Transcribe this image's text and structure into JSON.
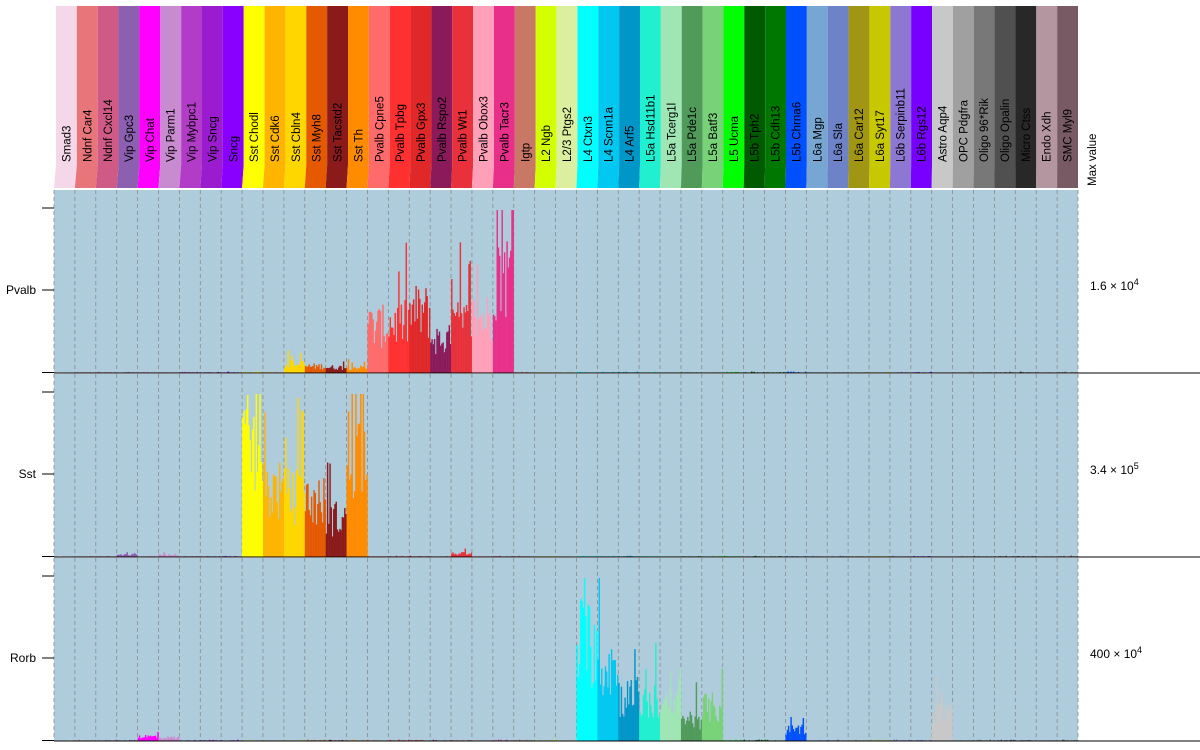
{
  "chart_data": {
    "type": "bar",
    "title": "",
    "max_value_header": "Max value",
    "clusters": [
      {
        "name": "Smad3",
        "color": "#F4D7E8"
      },
      {
        "name": "Ndnf Car4",
        "color": "#E8757A"
      },
      {
        "name": "Ndnf Cxcl14",
        "color": "#CF5A86"
      },
      {
        "name": "Vip Gpc3",
        "color": "#8C5FB0"
      },
      {
        "name": "Vip Chat",
        "color": "#FF00FF"
      },
      {
        "name": "Vip Parm1",
        "color": "#C98BD0"
      },
      {
        "name": "Vip Mybpc1",
        "color": "#B23CC8"
      },
      {
        "name": "Vip Sncg",
        "color": "#9B1CCF"
      },
      {
        "name": "Sncg",
        "color": "#8A00FF"
      },
      {
        "name": "Sst Chodl",
        "color": "#FFFF00"
      },
      {
        "name": "Sst Cdk6",
        "color": "#FFB400"
      },
      {
        "name": "Sst Cbln4",
        "color": "#FFD700"
      },
      {
        "name": "Sst Myh8",
        "color": "#E55A00"
      },
      {
        "name": "Sst Tacstd2",
        "color": "#8B1A1A"
      },
      {
        "name": "Sst Th",
        "color": "#FF8C00"
      },
      {
        "name": "Pvalb Cpne5",
        "color": "#FF6A6A"
      },
      {
        "name": "Pvalb Tpbg",
        "color": "#FF3030"
      },
      {
        "name": "Pvalb Gpx3",
        "color": "#E02828"
      },
      {
        "name": "Pvalb Rspo2",
        "color": "#8B1A5A"
      },
      {
        "name": "Pvalb Wt1",
        "color": "#E8313A"
      },
      {
        "name": "Pvalb Obox3",
        "color": "#FFA0B8"
      },
      {
        "name": "Pvalb Tacr3",
        "color": "#E8308A"
      },
      {
        "name": "Igtp",
        "color": "#C87864"
      },
      {
        "name": "L2 Ngb",
        "color": "#D4FF00"
      },
      {
        "name": "L2/3 Ptgs2",
        "color": "#DCEFA0"
      },
      {
        "name": "L4 Ctxn3",
        "color": "#00FFFF"
      },
      {
        "name": "L4 Scnn1a",
        "color": "#00C8F0"
      },
      {
        "name": "L4 Arf5",
        "color": "#0096C8"
      },
      {
        "name": "L5a Hsd11b1",
        "color": "#20F0D0"
      },
      {
        "name": "L5a Tcerg1l",
        "color": "#A0E6B4"
      },
      {
        "name": "L5a Pde1c",
        "color": "#509A5A"
      },
      {
        "name": "L5a Batf3",
        "color": "#78D278"
      },
      {
        "name": "L5 Ucma",
        "color": "#00FF00"
      },
      {
        "name": "L5b Tph2",
        "color": "#005A00"
      },
      {
        "name": "L5b Cdh13",
        "color": "#007800"
      },
      {
        "name": "L5b Chrna6",
        "color": "#0050FF"
      },
      {
        "name": "L6a Mgp",
        "color": "#78A6D2"
      },
      {
        "name": "L6a Sla",
        "color": "#6E82C8"
      },
      {
        "name": "L6a Car12",
        "color": "#A09614"
      },
      {
        "name": "L6a Syt17",
        "color": "#C8C800"
      },
      {
        "name": "L6b Serpinb11",
        "color": "#8C78D2"
      },
      {
        "name": "L6b Rgs12",
        "color": "#7800FF"
      },
      {
        "name": "Astro Aqp4",
        "color": "#C8C8C8"
      },
      {
        "name": "OPC Pdgfra",
        "color": "#A0A0A0"
      },
      {
        "name": "Oligo 96*Rik",
        "color": "#787878"
      },
      {
        "name": "Oligo Opalin",
        "color": "#505050"
      },
      {
        "name": "Micro Ctss",
        "color": "#282828"
      },
      {
        "name": "Endo Xdh",
        "color": "#B496A0"
      },
      {
        "name": "SMC Myl9",
        "color": "#785A64"
      }
    ],
    "series": [
      {
        "name": "Pvalb",
        "max_value_mantissa": "1.6",
        "max_value_exponent": "4"
      },
      {
        "name": "Sst",
        "max_value_mantissa": "3.4",
        "max_value_exponent": "5"
      },
      {
        "name": "Rorb",
        "max_value_mantissa": "400",
        "max_value_exponent": "4"
      }
    ],
    "grid": true,
    "panel_color": "#AFCCDC",
    "colors": {
      "axis": "#000000",
      "grid": "#8A8A8A"
    }
  }
}
